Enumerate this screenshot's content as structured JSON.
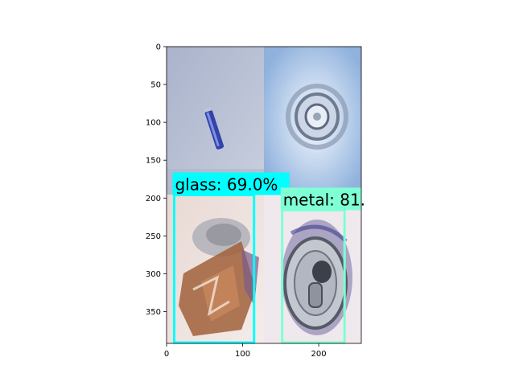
{
  "figure": {
    "x_ticks": [
      "0",
      "100",
      "200"
    ],
    "y_ticks": [
      "0",
      "50",
      "100",
      "150",
      "200",
      "250",
      "300",
      "350"
    ],
    "x_tick_values": [
      0,
      100,
      200
    ],
    "y_tick_values": [
      0,
      50,
      100,
      150,
      200,
      250,
      300,
      350
    ],
    "xlim": [
      0,
      256
    ],
    "ylim": [
      392,
      0
    ]
  },
  "tiles": [
    {
      "name": "tile-battery",
      "x_range": [
        0,
        128
      ],
      "y_range": [
        0,
        196
      ],
      "subject": "battery-on-white-surface"
    },
    {
      "name": "tile-bottle-bottom",
      "x_range": [
        128,
        256
      ],
      "y_range": [
        0,
        196
      ],
      "subject": "bottle-bottom-closeup"
    },
    {
      "name": "tile-crushed-can",
      "x_range": [
        0,
        128
      ],
      "y_range": [
        196,
        392
      ],
      "subject": "crushed-can"
    },
    {
      "name": "tile-can-top",
      "x_range": [
        128,
        256
      ],
      "y_range": [
        196,
        392
      ],
      "subject": "can-top-with-pull-tab"
    }
  ],
  "detections": [
    {
      "label": "glass: 69.0%",
      "color": "#00ffff",
      "x0": 10,
      "y0": 196,
      "x1": 115,
      "y1": 391
    },
    {
      "label": "metal: 81.",
      "color": "#7fffd4",
      "x0": 152,
      "y0": 216,
      "x1": 234,
      "y1": 391
    }
  ]
}
